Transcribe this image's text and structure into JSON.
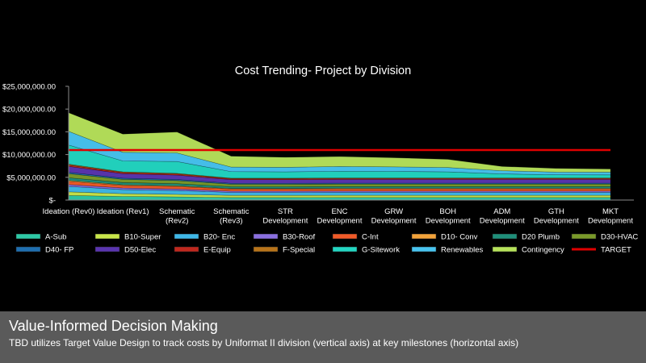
{
  "chart_data": {
    "type": "area",
    "title": "Cost Trending- Project by Division",
    "categories": [
      [
        "Ideation (Rev0)"
      ],
      [
        "Ideation (Rev1)"
      ],
      [
        "Schematic",
        "(Rev2)"
      ],
      [
        "Schematic",
        "(Rev3)"
      ],
      [
        "STR",
        "Development"
      ],
      [
        "ENC",
        "Development"
      ],
      [
        "GRW",
        "Development"
      ],
      [
        "BOH",
        "Development"
      ],
      [
        "ADM",
        "Development"
      ],
      [
        "GTH",
        "Development"
      ],
      [
        "MKT",
        "Development"
      ]
    ],
    "yticks": [
      "$-",
      "$5,000,000.00",
      "$10,000,000.00",
      "$15,000,000.00",
      "$20,000,000.00",
      "$25,000,000.00"
    ],
    "ylim": [
      0,
      25000000
    ],
    "grid": false,
    "legend_position": "bottom",
    "series": [
      {
        "name": "A-Sub",
        "color": "#2ec9a6",
        "values": [
          1000000,
          800000,
          700000,
          550000,
          550000,
          560000,
          560000,
          560000,
          560000,
          560000,
          560000
        ]
      },
      {
        "name": "B10-Super",
        "color": "#c9e64a",
        "values": [
          800000,
          600000,
          550000,
          480000,
          480000,
          480000,
          480000,
          480000,
          480000,
          480000,
          480000
        ]
      },
      {
        "name": "B20- Enc",
        "color": "#3fb8e8",
        "values": [
          1200000,
          900000,
          850000,
          650000,
          650000,
          660000,
          660000,
          660000,
          660000,
          660000,
          660000
        ]
      },
      {
        "name": "B30-Roof",
        "color": "#8a6fe0",
        "values": [
          400000,
          350000,
          330000,
          280000,
          280000,
          280000,
          280000,
          280000,
          280000,
          280000,
          280000
        ]
      },
      {
        "name": "C-Int",
        "color": "#f05a28",
        "values": [
          700000,
          550000,
          550000,
          450000,
          450000,
          460000,
          460000,
          460000,
          460000,
          460000,
          460000
        ]
      },
      {
        "name": "D10- Conv",
        "color": "#f2a23a",
        "values": [
          200000,
          150000,
          150000,
          120000,
          120000,
          120000,
          120000,
          120000,
          120000,
          120000,
          120000
        ]
      },
      {
        "name": "D20 Plumb",
        "color": "#1f8f7a",
        "values": [
          600000,
          500000,
          480000,
          400000,
          400000,
          400000,
          400000,
          400000,
          400000,
          400000,
          400000
        ]
      },
      {
        "name": "D30-HVAC",
        "color": "#7a9a2a",
        "values": [
          900000,
          700000,
          680000,
          550000,
          550000,
          560000,
          560000,
          560000,
          560000,
          560000,
          560000
        ]
      },
      {
        "name": "D40- FP",
        "color": "#1f6fb0",
        "values": [
          300000,
          250000,
          240000,
          200000,
          200000,
          200000,
          200000,
          200000,
          200000,
          200000,
          200000
        ]
      },
      {
        "name": "D50-Elec",
        "color": "#5a35b0",
        "values": [
          1300000,
          1000000,
          950000,
          800000,
          800000,
          810000,
          810000,
          810000,
          810000,
          810000,
          810000
        ]
      },
      {
        "name": "E-Equip",
        "color": "#c0281e",
        "values": [
          300000,
          250000,
          240000,
          200000,
          200000,
          200000,
          200000,
          200000,
          200000,
          200000,
          200000
        ]
      },
      {
        "name": "F-Special",
        "color": "#b8741a",
        "values": [
          200000,
          150000,
          150000,
          120000,
          120000,
          120000,
          120000,
          120000,
          120000,
          120000,
          120000
        ]
      },
      {
        "name": "G-Sitework",
        "color": "#23d6c2",
        "values": [
          4200000,
          2400000,
          2600000,
          1450000,
          1400000,
          1470000,
          1450000,
          1350000,
          900000,
          700000,
          680000
        ]
      },
      {
        "name": "Renewables",
        "color": "#48c4f0",
        "values": [
          3000000,
          1900000,
          1880000,
          1000000,
          1000000,
          1050000,
          1000000,
          950000,
          700000,
          600000,
          600000
        ]
      },
      {
        "name": "Contingency",
        "color": "#b6e25a",
        "values": [
          4100000,
          4000000,
          4600000,
          2400000,
          2200000,
          2200000,
          2000000,
          1800000,
          940000,
          800000,
          690000
        ]
      }
    ],
    "target": {
      "name": "TARGET",
      "color": "#e00000",
      "values": [
        11000000,
        11000000,
        11000000,
        11000000,
        11000000,
        11000000,
        11000000,
        11000000,
        11000000,
        11000000,
        11000000
      ]
    }
  },
  "caption": {
    "title": "Value-Informed  Decision  Making",
    "subtitle": "TBD utilizes Target Value Design to track costs by Uniformat II division (vertical axis) at key milestones (horizontal axis)"
  }
}
